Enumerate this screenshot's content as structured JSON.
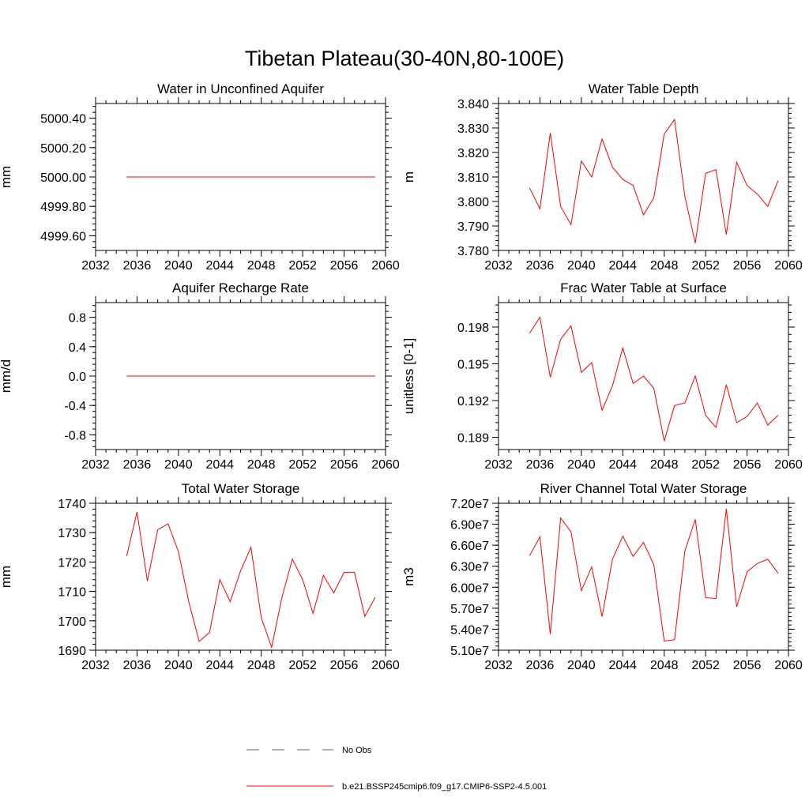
{
  "title": "Tibetan Plateau(30-40N,80-100E)",
  "legend": {
    "entries": [
      {
        "label": "No Obs",
        "color": "#4f5fb0",
        "style": "dashed"
      },
      {
        "label": "b.e21.BSSP245cmip6.f09_g17.CMIP6-SSP2-4.5.001",
        "color": "#ff0000",
        "style": "solid"
      }
    ]
  },
  "chart_data": [
    {
      "type": "line",
      "title": "Water in Unconfined Aquifer",
      "ylabel": "mm",
      "xlim": [
        2032,
        2060
      ],
      "ylim": [
        4999.5,
        5000.5
      ],
      "xticks": [
        "2032",
        "2036",
        "2040",
        "2044",
        "2048",
        "2052",
        "2056",
        "2060"
      ],
      "yticks": [
        "4999.60",
        "4999.80",
        "5000.00",
        "5000.20",
        "5000.40"
      ],
      "color": "#ff0000",
      "x": [
        2035,
        2036,
        2037,
        2038,
        2039,
        2040,
        2041,
        2042,
        2043,
        2044,
        2045,
        2046,
        2047,
        2048,
        2049,
        2050,
        2051,
        2052,
        2053,
        2054,
        2055,
        2056,
        2057,
        2058,
        2059
      ],
      "y": [
        5000,
        5000,
        5000,
        5000,
        5000,
        5000,
        5000,
        5000,
        5000,
        5000,
        5000,
        5000,
        5000,
        5000,
        5000,
        5000,
        5000,
        5000,
        5000,
        5000,
        5000,
        5000,
        5000,
        5000,
        5000
      ]
    },
    {
      "type": "line",
      "title": "Water Table Depth",
      "ylabel": "m",
      "xlim": [
        2032,
        2060
      ],
      "ylim": [
        3.78,
        3.84
      ],
      "xticks": [
        "2032",
        "2036",
        "2040",
        "2044",
        "2048",
        "2052",
        "2056",
        "2060"
      ],
      "yticks": [
        "3.780",
        "3.790",
        "3.800",
        "3.810",
        "3.820",
        "3.830",
        "3.840"
      ],
      "color": "#ff0000",
      "x": [
        2035,
        2036,
        2037,
        2038,
        2039,
        2040,
        2041,
        2042,
        2043,
        2044,
        2045,
        2046,
        2047,
        2048,
        2049,
        2050,
        2051,
        2052,
        2053,
        2054,
        2055,
        2056,
        2057,
        2058,
        2059
      ],
      "y": [
        3.8055,
        3.797,
        3.828,
        3.798,
        3.7905,
        3.8165,
        3.81,
        3.8255,
        3.814,
        3.809,
        3.8065,
        3.7945,
        3.8015,
        3.8275,
        3.8335,
        3.802,
        3.783,
        3.8115,
        3.813,
        3.7865,
        3.816,
        3.8065,
        3.803,
        3.798,
        3.8085
      ]
    },
    {
      "type": "line",
      "title": "Aquifer Recharge Rate",
      "ylabel": "mm/d",
      "xlim": [
        2032,
        2060
      ],
      "ylim": [
        -1.0,
        1.0
      ],
      "xticks": [
        "2032",
        "2036",
        "2040",
        "2044",
        "2048",
        "2052",
        "2056",
        "2060"
      ],
      "yticks": [
        "-0.8",
        "-0.4",
        "0.0",
        "0.4",
        "0.8"
      ],
      "color": "#ff0000",
      "x": [
        2035,
        2036,
        2037,
        2038,
        2039,
        2040,
        2041,
        2042,
        2043,
        2044,
        2045,
        2046,
        2047,
        2048,
        2049,
        2050,
        2051,
        2052,
        2053,
        2054,
        2055,
        2056,
        2057,
        2058,
        2059
      ],
      "y": [
        0,
        0,
        0,
        0,
        0,
        0,
        0,
        0,
        0,
        0,
        0,
        0,
        0,
        0,
        0,
        0,
        0,
        0,
        0,
        0,
        0,
        0,
        0,
        0,
        0
      ]
    },
    {
      "type": "line",
      "title": "Frac Water Table at Surface",
      "ylabel": "unitless [0-1]",
      "xlim": [
        2032,
        2060
      ],
      "ylim": [
        0.188,
        0.2
      ],
      "xticks": [
        "2032",
        "2036",
        "2040",
        "2044",
        "2048",
        "2052",
        "2056",
        "2060"
      ],
      "yticks": [
        "0.189",
        "0.192",
        "0.195",
        "0.198"
      ],
      "color": "#ff0000",
      "x": [
        2035,
        2036,
        2037,
        2038,
        2039,
        2040,
        2041,
        2042,
        2043,
        2044,
        2045,
        2046,
        2047,
        2048,
        2049,
        2050,
        2051,
        2052,
        2053,
        2054,
        2055,
        2056,
        2057,
        2058,
        2059
      ],
      "y": [
        0.1975,
        0.1988,
        0.1939,
        0.197,
        0.1981,
        0.1943,
        0.1951,
        0.1912,
        0.1932,
        0.1963,
        0.1934,
        0.194,
        0.193,
        0.1887,
        0.1916,
        0.1918,
        0.194,
        0.1908,
        0.1898,
        0.1933,
        0.1902,
        0.1907,
        0.1918,
        0.19,
        0.1908
      ]
    },
    {
      "type": "line",
      "title": "Total Water Storage",
      "ylabel": "mm",
      "xlim": [
        2032,
        2060
      ],
      "ylim": [
        1690,
        1740
      ],
      "xticks": [
        "2032",
        "2036",
        "2040",
        "2044",
        "2048",
        "2052",
        "2056",
        "2060"
      ],
      "yticks": [
        "1690",
        "1700",
        "1710",
        "1720",
        "1730",
        "1740"
      ],
      "color": "#ff0000",
      "x": [
        2035,
        2036,
        2037,
        2038,
        2039,
        2040,
        2041,
        2042,
        2043,
        2044,
        2045,
        2046,
        2047,
        2048,
        2049,
        2050,
        2051,
        2052,
        2053,
        2054,
        2055,
        2056,
        2057,
        2058,
        2059
      ],
      "y": [
        1722,
        1737,
        1713.5,
        1731,
        1733,
        1723.5,
        1706.5,
        1693,
        1696,
        1714,
        1706.5,
        1717,
        1725,
        1701,
        1691,
        1708,
        1721,
        1714,
        1702.5,
        1715.5,
        1709.5,
        1716.5,
        1716.5,
        1701.5,
        1708
      ]
    },
    {
      "type": "line",
      "title": "River Channel Total Water Storage",
      "ylabel": "m3",
      "xlim": [
        2032,
        2060
      ],
      "ylim": [
        51000000,
        72000000
      ],
      "xticks": [
        "2032",
        "2036",
        "2040",
        "2044",
        "2048",
        "2052",
        "2056",
        "2060"
      ],
      "yticks": [
        "5.10e7",
        "5.40e7",
        "5.70e7",
        "6.00e7",
        "6.30e7",
        "6.60e7",
        "6.90e7",
        "7.20e7"
      ],
      "color": "#ff0000",
      "x": [
        2035,
        2036,
        2037,
        2038,
        2039,
        2040,
        2041,
        2042,
        2043,
        2044,
        2045,
        2046,
        2047,
        2048,
        2049,
        2050,
        2051,
        2052,
        2053,
        2054,
        2055,
        2056,
        2057,
        2058,
        2059
      ],
      "y": [
        64500000,
        67200000,
        53300000,
        69900000,
        67900000,
        59500000,
        62900000,
        55800000,
        64000000,
        67300000,
        64400000,
        66400000,
        63200000,
        52300000,
        52500000,
        65200000,
        69700000,
        58500000,
        58400000,
        71200000,
        57200000,
        62200000,
        63400000,
        64000000,
        62000000
      ]
    }
  ]
}
